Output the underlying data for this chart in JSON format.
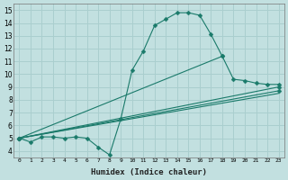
{
  "title": "",
  "xlabel": "Humidex (Indice chaleur)",
  "ylabel": "",
  "bg_color": "#c2e0e0",
  "grid_color": "#aacece",
  "line_color": "#1a7a6a",
  "xlim": [
    -0.5,
    23.5
  ],
  "ylim": [
    3.5,
    15.5
  ],
  "xticks": [
    0,
    1,
    2,
    3,
    4,
    5,
    6,
    7,
    8,
    9,
    10,
    11,
    12,
    13,
    14,
    15,
    16,
    17,
    18,
    19,
    20,
    21,
    22,
    23
  ],
  "yticks": [
    4,
    5,
    6,
    7,
    8,
    9,
    10,
    11,
    12,
    13,
    14,
    15
  ],
  "curves": [
    {
      "x": [
        0,
        1,
        2,
        3,
        4,
        5,
        6,
        7,
        8,
        9,
        10,
        11,
        12,
        13,
        14,
        15,
        16,
        17,
        18
      ],
      "y": [
        5.0,
        4.7,
        5.1,
        5.1,
        5.0,
        5.1,
        5.0,
        4.3,
        3.7,
        6.5,
        10.3,
        11.8,
        13.8,
        14.3,
        14.8,
        14.8,
        14.6,
        13.1,
        11.4
      ],
      "marker": "D",
      "markersize": 2.5,
      "has_marker": true
    },
    {
      "x": [
        0,
        18,
        19,
        20,
        21,
        22,
        23
      ],
      "y": [
        5.0,
        11.4,
        9.6,
        9.5,
        9.3,
        9.2,
        9.2
      ],
      "marker": "D",
      "markersize": 2.5,
      "has_marker": true
    },
    {
      "x": [
        0,
        23
      ],
      "y": [
        5.0,
        9.0
      ],
      "marker": "D",
      "markersize": 2.5,
      "has_marker": true
    },
    {
      "x": [
        0,
        23
      ],
      "y": [
        5.0,
        8.7
      ],
      "marker": "D",
      "markersize": 2.5,
      "has_marker": true
    },
    {
      "x": [
        0,
        23
      ],
      "y": [
        5.0,
        8.5
      ],
      "marker": "D",
      "markersize": 2.5,
      "has_marker": false
    }
  ]
}
